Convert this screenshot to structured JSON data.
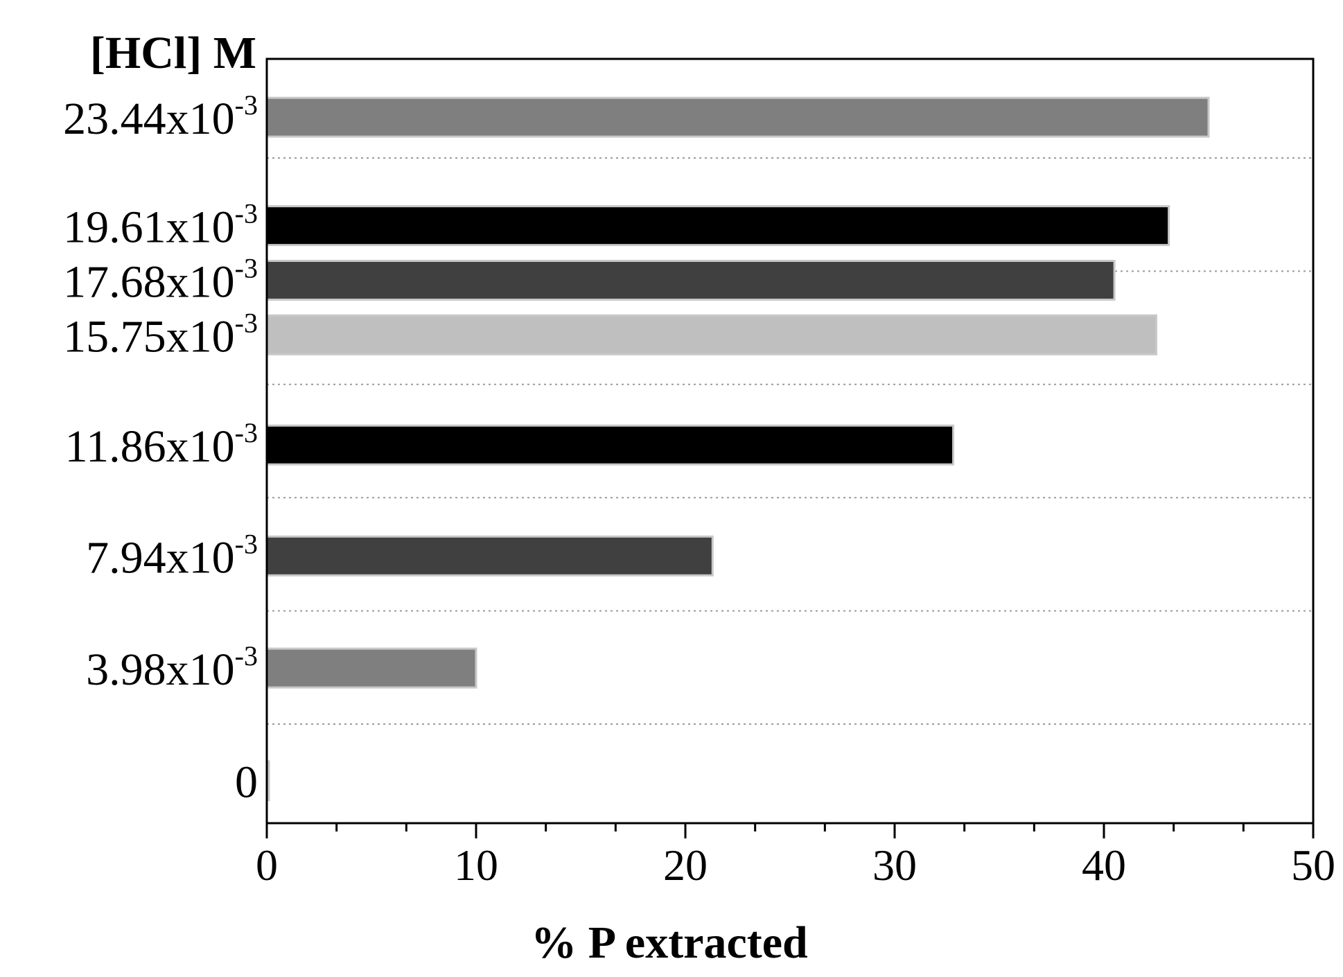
{
  "chart_data": {
    "type": "bar",
    "orientation": "horizontal",
    "title": "",
    "xlabel": "% P extracted",
    "ylabel": "[HCl] M",
    "xlim": [
      0,
      50
    ],
    "x_ticks": [
      "0",
      "10",
      "20",
      "30",
      "40",
      "50"
    ],
    "x_minor_ticks_per_major": 2,
    "legend": "none",
    "grid": "dotted horizontal lines",
    "categories": [
      {
        "base": "23.44x10",
        "exp": "-3",
        "y_value": 23.44
      },
      {
        "base": "19.61x10",
        "exp": "-3",
        "y_value": 19.61
      },
      {
        "base": "17.68x10",
        "exp": "-3",
        "y_value": 17.68
      },
      {
        "base": "15.75x10",
        "exp": "-3",
        "y_value": 15.75
      },
      {
        "base": "11.86x10",
        "exp": "-3",
        "y_value": 11.86
      },
      {
        "base": "7.94x10",
        "exp": "-3",
        "y_value": 7.94
      },
      {
        "base": "3.98x10",
        "exp": "-3",
        "y_value": 3.98
      },
      {
        "base": "0",
        "exp": "",
        "y_value": 0
      }
    ],
    "values": [
      45.0,
      43.1,
      40.5,
      42.5,
      32.8,
      21.3,
      10.0,
      0.1
    ],
    "bar_colors": [
      "#7f7f7f",
      "#000000",
      "#404040",
      "#bfbfbf",
      "#000000",
      "#404040",
      "#7f7f7f",
      "#bfbfbf"
    ],
    "y_axis_range": [
      -1.5,
      25.5
    ]
  }
}
